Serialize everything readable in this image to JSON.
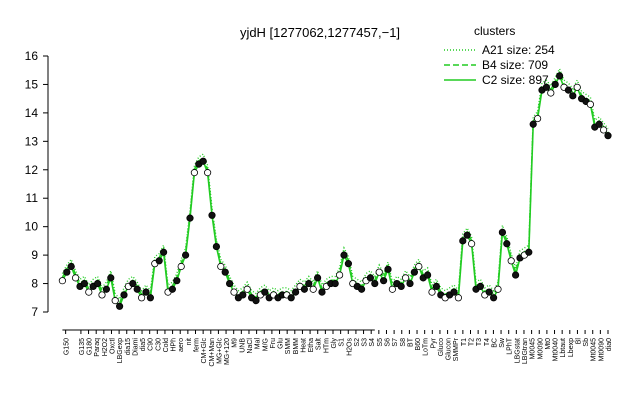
{
  "chart_data": {
    "type": "line",
    "title": "yjdH [1277062,1277457,−1]",
    "xlabel": "",
    "ylabel": "",
    "ylim": [
      7,
      16
    ],
    "yticks": [
      7,
      8,
      9,
      10,
      11,
      12,
      13,
      14,
      15,
      16
    ],
    "grid": false,
    "legend": {
      "title": "clusters",
      "placement": "top-right",
      "entries": [
        {
          "label": "A21 size: 254",
          "style": "dotted"
        },
        {
          "label": "B4 size: 709",
          "style": "dashed"
        },
        {
          "label": "C2 size: 897",
          "style": "solid"
        }
      ]
    },
    "series_color": "#22cc22",
    "x_tick_labels": [
      "G150",
      "G135",
      "G180",
      "Paraq",
      "H2O2",
      "Oxctl",
      "LBGexp",
      "dia15",
      "Diami",
      "dia5",
      "C90",
      "C30",
      "Cold",
      "HPh",
      "aero",
      "nit",
      "ferm",
      "CM+Glc",
      "CM+Man",
      "MG+Glc",
      "MG+120",
      "M9",
      "UNB",
      "NaCl",
      "Mal",
      "M/G",
      "Fru",
      "Glu",
      "SMM",
      "BMM",
      "Heat",
      "Etha",
      "Salt",
      "HTm",
      "Gly",
      "S1",
      "H2Os",
      "S2",
      "S3",
      "S4",
      "S5",
      "S6",
      "S7",
      "S8",
      "BT",
      "B60",
      "LoTm",
      "Pyr",
      "Gluco",
      "Glucon",
      "SMMPr",
      "T1",
      "T2",
      "T3",
      "T4",
      "BC",
      "Sw",
      "LPhT",
      "LBGstat",
      "LBGtran",
      "M0045",
      "M0090",
      "Mt0",
      "Mt0040",
      "Lbtaut",
      "Lbexp",
      "Bl",
      "Sb",
      "Mt0045",
      "Mt0090",
      "dia0"
    ],
    "x_range": [
      0,
      125
    ],
    "points": [
      [
        1,
        8.1
      ],
      [
        2,
        8.4
      ],
      [
        3,
        8.6
      ],
      [
        4,
        8.2
      ],
      [
        5,
        7.9
      ],
      [
        6,
        8.0
      ],
      [
        7,
        7.7
      ],
      [
        8,
        7.9
      ],
      [
        9,
        8.0
      ],
      [
        10,
        7.6
      ],
      [
        11,
        7.8
      ],
      [
        12,
        8.2
      ],
      [
        13,
        7.4
      ],
      [
        14,
        7.2
      ],
      [
        15,
        7.6
      ],
      [
        16,
        7.9
      ],
      [
        17,
        8.0
      ],
      [
        18,
        7.8
      ],
      [
        19,
        7.5
      ],
      [
        20,
        7.7
      ],
      [
        21,
        7.5
      ],
      [
        22,
        8.7
      ],
      [
        23,
        8.8
      ],
      [
        24,
        9.1
      ],
      [
        25,
        7.7
      ],
      [
        26,
        7.8
      ],
      [
        27,
        8.1
      ],
      [
        28,
        8.6
      ],
      [
        29,
        9.0
      ],
      [
        30,
        10.3
      ],
      [
        31,
        11.9
      ],
      [
        32,
        12.2
      ],
      [
        33,
        12.3
      ],
      [
        34,
        11.9
      ],
      [
        35,
        10.4
      ],
      [
        36,
        9.3
      ],
      [
        37,
        8.6
      ],
      [
        38,
        8.4
      ],
      [
        39,
        8.0
      ],
      [
        40,
        7.7
      ],
      [
        41,
        7.5
      ],
      [
        42,
        7.6
      ],
      [
        43,
        7.8
      ],
      [
        44,
        7.5
      ],
      [
        45,
        7.4
      ],
      [
        46,
        7.6
      ],
      [
        47,
        7.7
      ],
      [
        48,
        7.5
      ],
      [
        49,
        7.6
      ],
      [
        50,
        7.5
      ],
      [
        51,
        7.6
      ],
      [
        52,
        7.6
      ],
      [
        53,
        7.5
      ],
      [
        54,
        7.7
      ],
      [
        55,
        7.9
      ],
      [
        56,
        7.8
      ],
      [
        57,
        8.0
      ],
      [
        58,
        7.8
      ],
      [
        59,
        8.2
      ],
      [
        60,
        7.7
      ],
      [
        61,
        7.9
      ],
      [
        62,
        8.0
      ],
      [
        63,
        8.0
      ],
      [
        64,
        8.3
      ],
      [
        65,
        9.0
      ],
      [
        66,
        8.7
      ],
      [
        67,
        8.0
      ],
      [
        68,
        7.9
      ],
      [
        69,
        7.8
      ],
      [
        70,
        8.1
      ],
      [
        71,
        8.2
      ],
      [
        72,
        8.0
      ],
      [
        73,
        8.4
      ],
      [
        74,
        8.1
      ],
      [
        75,
        8.5
      ],
      [
        76,
        7.8
      ],
      [
        77,
        8.0
      ],
      [
        78,
        7.9
      ],
      [
        79,
        8.2
      ],
      [
        80,
        8.0
      ],
      [
        81,
        8.4
      ],
      [
        82,
        8.6
      ],
      [
        83,
        8.2
      ],
      [
        84,
        8.3
      ],
      [
        85,
        7.7
      ],
      [
        86,
        7.9
      ],
      [
        87,
        7.6
      ],
      [
        88,
        7.5
      ],
      [
        89,
        7.6
      ],
      [
        90,
        7.7
      ],
      [
        91,
        7.5
      ],
      [
        92,
        9.5
      ],
      [
        93,
        9.7
      ],
      [
        94,
        9.4
      ],
      [
        95,
        7.8
      ],
      [
        96,
        7.9
      ],
      [
        97,
        7.6
      ],
      [
        98,
        7.7
      ],
      [
        99,
        7.5
      ],
      [
        100,
        7.8
      ],
      [
        101,
        9.8
      ],
      [
        102,
        9.4
      ],
      [
        103,
        8.8
      ],
      [
        104,
        8.3
      ],
      [
        105,
        8.9
      ],
      [
        106,
        9.0
      ],
      [
        107,
        9.1
      ],
      [
        108,
        13.6
      ],
      [
        109,
        13.8
      ],
      [
        110,
        14.8
      ],
      [
        111,
        14.9
      ],
      [
        112,
        14.7
      ],
      [
        113,
        15.0
      ],
      [
        114,
        15.3
      ],
      [
        115,
        14.9
      ],
      [
        116,
        14.8
      ],
      [
        117,
        14.6
      ],
      [
        118,
        14.9
      ],
      [
        119,
        14.5
      ],
      [
        120,
        14.4
      ],
      [
        121,
        14.3
      ],
      [
        122,
        13.5
      ],
      [
        123,
        13.6
      ],
      [
        124,
        13.4
      ],
      [
        125,
        13.2
      ]
    ],
    "x_tick_positions": [
      1,
      3,
      4,
      5,
      6,
      7,
      8,
      9,
      10,
      11,
      12,
      13,
      14,
      15,
      16,
      17,
      18,
      19,
      20,
      21,
      22,
      23,
      24,
      25,
      26,
      27,
      28,
      29,
      30,
      31,
      32,
      33,
      34,
      35,
      36,
      37,
      38,
      39,
      40,
      41,
      42,
      43,
      44,
      45,
      46,
      47,
      48,
      49,
      50,
      51,
      52,
      53,
      54,
      55,
      56,
      57,
      58,
      59,
      60,
      61,
      62,
      63,
      64,
      65,
      66,
      67,
      68,
      69,
      70,
      71,
      72
    ]
  }
}
